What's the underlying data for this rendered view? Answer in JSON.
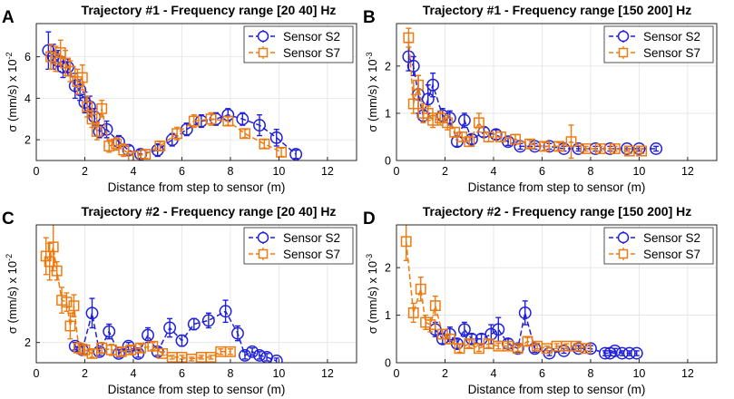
{
  "figure": {
    "colors": {
      "sensor_s2": "#1f1fdc",
      "sensor_s7": "#ee7b10",
      "grid": "#e3e3e3",
      "axis": "#262626"
    }
  },
  "chart_data": [
    {
      "panel_label": "A",
      "type": "scatter",
      "title": "Trajectory #1 - Frequency range [20 40] Hz",
      "xlabel": "Distance from step to sensor (m)",
      "ylabel": "σ (mm/s) x 10",
      "ylabel_exponent": "-2",
      "xlim": [
        0,
        13.2
      ],
      "ylim": [
        1.0,
        7.6
      ],
      "xticks": [
        0,
        2,
        4,
        6,
        8,
        10,
        12
      ],
      "xtick_labels": [
        "0",
        "2",
        "4",
        "6",
        "8",
        "10",
        "12"
      ],
      "yticks": [
        2,
        4,
        6
      ],
      "ytick_labels": [
        "2",
        "4",
        "6"
      ],
      "grid": true,
      "legend": "top-right",
      "series": [
        {
          "name": "Sensor S2",
          "marker": "circle",
          "x": [
            0.5,
            0.7,
            0.9,
            1.1,
            1.3,
            1.6,
            1.8,
            2.0,
            2.2,
            2.4,
            2.6,
            2.9,
            3.4,
            3.8,
            4.3,
            5.0,
            5.6,
            6.2,
            6.8,
            7.4,
            7.9,
            8.5,
            9.2,
            9.9,
            10.7
          ],
          "y": [
            6.3,
            6.0,
            5.8,
            5.5,
            5.5,
            4.6,
            4.4,
            3.8,
            3.6,
            3.1,
            2.4,
            2.5,
            1.9,
            1.5,
            1.3,
            1.5,
            2.0,
            2.5,
            2.9,
            3.0,
            3.2,
            3.0,
            2.7,
            2.1,
            1.3
          ],
          "err": [
            0.9,
            0.6,
            0.5,
            0.5,
            0.4,
            0.6,
            0.5,
            0.5,
            0.5,
            0.4,
            0.3,
            0.4,
            0.3,
            0.2,
            0.2,
            0.3,
            0.3,
            0.3,
            0.3,
            0.3,
            0.3,
            0.3,
            0.5,
            0.4,
            0.2
          ]
        },
        {
          "name": "Sensor S7",
          "marker": "square",
          "x": [
            0.6,
            0.8,
            1.0,
            1.2,
            1.4,
            1.7,
            1.9,
            2.1,
            2.3,
            2.5,
            2.7,
            3.0,
            3.3,
            3.6,
            4.0,
            4.5,
            5.1,
            5.8,
            6.5,
            7.2,
            7.9,
            8.6,
            9.4,
            10.1
          ],
          "y": [
            6.0,
            5.9,
            6.2,
            5.7,
            5.3,
            4.8,
            5.0,
            3.6,
            3.0,
            2.4,
            3.5,
            1.7,
            1.8,
            1.5,
            1.2,
            1.3,
            1.7,
            2.3,
            2.9,
            3.0,
            2.9,
            2.3,
            1.8,
            1.4
          ],
          "err": [
            0.6,
            0.6,
            0.6,
            0.6,
            0.5,
            0.6,
            0.6,
            0.5,
            0.4,
            0.4,
            0.4,
            0.3,
            0.3,
            0.3,
            0.2,
            0.2,
            0.2,
            0.3,
            0.3,
            0.3,
            0.2,
            0.2,
            0.2,
            0.2
          ]
        }
      ]
    },
    {
      "panel_label": "B",
      "type": "scatter",
      "title": "Trajectory #1 - Frequency range [150 200] Hz",
      "xlabel": "Distance from step to sensor (m)",
      "ylabel": "σ (mm/s) x 10",
      "ylabel_exponent": "-3",
      "xlim": [
        0,
        13.2
      ],
      "ylim": [
        0,
        2.9
      ],
      "xticks": [
        0,
        2,
        4,
        6,
        8,
        10,
        12
      ],
      "xtick_labels": [
        "0",
        "2",
        "4",
        "6",
        "8",
        "10",
        "12"
      ],
      "yticks": [
        0,
        1,
        2
      ],
      "ytick_labels": [
        "0",
        "1",
        "2"
      ],
      "grid": true,
      "legend": "top-right",
      "series": [
        {
          "name": "Sensor S2",
          "marker": "circle",
          "x": [
            0.5,
            0.7,
            0.9,
            1.1,
            1.3,
            1.5,
            1.9,
            2.2,
            2.5,
            2.8,
            3.1,
            3.6,
            4.1,
            4.6,
            5.1,
            5.7,
            6.3,
            6.9,
            7.5,
            8.2,
            8.8,
            9.5,
            10.0,
            10.7
          ],
          "y": [
            2.2,
            2.0,
            1.4,
            0.95,
            1.3,
            1.6,
            0.95,
            0.9,
            0.4,
            0.85,
            0.45,
            0.6,
            0.55,
            0.4,
            0.3,
            0.3,
            0.3,
            0.25,
            0.25,
            0.25,
            0.25,
            0.25,
            0.25,
            0.25
          ],
          "err": [
            0.3,
            0.2,
            0.4,
            0.15,
            0.3,
            0.25,
            0.15,
            0.15,
            0.1,
            0.15,
            0.1,
            0.1,
            0.1,
            0.08,
            0.06,
            0.06,
            0.06,
            0.05,
            0.05,
            0.05,
            0.05,
            0.05,
            0.05,
            0.05
          ]
        },
        {
          "name": "Sensor S7",
          "marker": "square",
          "x": [
            0.5,
            0.7,
            0.9,
            1.1,
            1.3,
            1.5,
            1.8,
            2.1,
            2.4,
            2.7,
            3.0,
            3.4,
            3.8,
            4.3,
            4.9,
            5.5,
            6.1,
            6.7,
            7.2,
            7.8,
            8.4,
            9.0,
            9.6,
            10.1
          ],
          "y": [
            2.6,
            1.2,
            1.6,
            1.0,
            1.0,
            0.85,
            0.9,
            0.8,
            0.6,
            0.5,
            0.4,
            0.8,
            0.5,
            0.5,
            0.45,
            0.35,
            0.3,
            0.3,
            0.4,
            0.25,
            0.25,
            0.25,
            0.2,
            0.2
          ],
          "err": [
            0.2,
            0.2,
            0.2,
            0.2,
            0.15,
            0.15,
            0.15,
            0.15,
            0.1,
            0.1,
            0.1,
            0.2,
            0.1,
            0.1,
            0.1,
            0.08,
            0.08,
            0.08,
            0.35,
            0.05,
            0.05,
            0.05,
            0.05,
            0.05
          ]
        }
      ]
    },
    {
      "panel_label": "C",
      "type": "scatter",
      "title": "Trajectory #2 - Frequency range [20 40] Hz",
      "xlabel": "Distance from step to sensor (m)",
      "ylabel": "σ (mm/s) x 10",
      "ylabel_exponent": "-2",
      "xlim": [
        0,
        13.2
      ],
      "ylim": [
        0.9,
        8.4
      ],
      "xticks": [
        0,
        2,
        4,
        6,
        8,
        10,
        12
      ],
      "xtick_labels": [
        "0",
        "2",
        "4",
        "6",
        "8",
        "10",
        "12"
      ],
      "yticks": [
        2
      ],
      "ytick_labels": [
        "2"
      ],
      "grid": true,
      "legend": "top-right",
      "series": [
        {
          "name": "Sensor S2",
          "marker": "circle",
          "x": [
            1.6,
            1.9,
            2.3,
            2.6,
            3.0,
            3.4,
            3.8,
            4.2,
            4.6,
            5.0,
            5.5,
            6.0,
            6.5,
            7.1,
            7.8,
            8.3,
            8.6,
            8.9,
            9.2,
            9.5,
            9.9
          ],
          "y": [
            1.8,
            1.6,
            3.6,
            1.5,
            2.6,
            1.4,
            1.8,
            1.4,
            2.4,
            1.5,
            2.8,
            2.1,
            3.0,
            3.2,
            3.7,
            2.5,
            1.3,
            1.5,
            1.3,
            1.2,
            1.0
          ],
          "err": [
            0.2,
            0.2,
            0.8,
            0.2,
            0.4,
            0.2,
            0.2,
            0.2,
            0.4,
            0.2,
            0.5,
            0.3,
            0.3,
            0.4,
            0.6,
            0.4,
            0.2,
            0.2,
            0.2,
            0.2,
            0.15
          ]
        },
        {
          "name": "Sensor S7",
          "marker": "square",
          "x": [
            0.4,
            0.55,
            0.7,
            0.85,
            1.05,
            1.25,
            1.4,
            1.55,
            1.75,
            2.0,
            2.3,
            2.7,
            3.1,
            3.5,
            3.9,
            4.3,
            4.8,
            5.2,
            5.6,
            6.0,
            6.4,
            6.8,
            7.2,
            7.6,
            8.0
          ],
          "y": [
            6.7,
            6.4,
            7.2,
            5.9,
            4.3,
            4.2,
            2.9,
            4.0,
            1.7,
            1.6,
            1.4,
            1.7,
            1.6,
            1.5,
            1.6,
            1.7,
            1.8,
            1.4,
            1.2,
            1.2,
            1.1,
            1.2,
            1.2,
            1.5,
            1.5
          ],
          "err": [
            1.0,
            1.0,
            1.3,
            0.5,
            0.7,
            0.5,
            0.7,
            0.6,
            0.3,
            0.3,
            0.2,
            0.3,
            0.3,
            0.2,
            0.2,
            0.2,
            0.2,
            0.1,
            0.1,
            0.1,
            0.1,
            0.1,
            0.1,
            0.15,
            0.15
          ]
        }
      ]
    },
    {
      "panel_label": "D",
      "type": "scatter",
      "title": "Trajectory #2 - Frequency range [150 200] Hz",
      "xlabel": "Distance from step to sensor (m)",
      "ylabel": "σ (mm/s) x 10",
      "ylabel_exponent": "-3",
      "xlim": [
        0,
        13.2
      ],
      "ylim": [
        0,
        2.9
      ],
      "xticks": [
        0,
        2,
        4,
        6,
        8,
        10,
        12
      ],
      "xtick_labels": [
        "0",
        "2",
        "4",
        "6",
        "8",
        "10",
        "12"
      ],
      "yticks": [
        0,
        1,
        2
      ],
      "ytick_labels": [
        "0",
        "1",
        "2"
      ],
      "grid": true,
      "legend": "top-right",
      "series": [
        {
          "name": "Sensor S2",
          "marker": "circle",
          "x": [
            1.6,
            1.9,
            2.2,
            2.5,
            2.8,
            3.1,
            3.5,
            3.9,
            4.2,
            4.6,
            5.0,
            5.3,
            5.7,
            6.3,
            6.9,
            7.5,
            8.0,
            8.6,
            8.8,
            9.0,
            9.3,
            9.6,
            9.9
          ],
          "y": [
            0.7,
            0.5,
            0.6,
            0.4,
            0.7,
            0.5,
            0.5,
            0.6,
            0.7,
            0.4,
            0.3,
            1.05,
            0.3,
            0.2,
            0.25,
            0.3,
            0.3,
            0.2,
            0.2,
            0.25,
            0.2,
            0.2,
            0.2
          ],
          "err": [
            0.15,
            0.1,
            0.15,
            0.1,
            0.15,
            0.1,
            0.1,
            0.2,
            0.25,
            0.1,
            0.08,
            0.25,
            0.08,
            0.05,
            0.05,
            0.06,
            0.06,
            0.05,
            0.05,
            0.05,
            0.05,
            0.05,
            0.05
          ]
        },
        {
          "name": "Sensor S7",
          "marker": "square",
          "x": [
            0.4,
            0.7,
            1.0,
            1.2,
            1.4,
            1.6,
            1.9,
            2.2,
            2.6,
            3.0,
            3.4,
            3.8,
            4.2,
            4.6,
            5.0,
            5.4,
            5.8,
            6.2,
            6.6,
            7.0,
            7.4,
            7.8
          ],
          "y": [
            2.55,
            1.05,
            1.55,
            0.85,
            0.8,
            1.2,
            0.6,
            0.5,
            0.3,
            0.4,
            0.3,
            0.4,
            0.35,
            0.35,
            0.3,
            0.45,
            0.35,
            0.3,
            0.35,
            0.35,
            0.35,
            0.3
          ],
          "err": [
            0.4,
            0.2,
            0.25,
            0.15,
            0.15,
            0.2,
            0.1,
            0.1,
            0.08,
            0.08,
            0.06,
            0.08,
            0.06,
            0.06,
            0.06,
            0.08,
            0.06,
            0.05,
            0.05,
            0.05,
            0.05,
            0.05
          ]
        }
      ]
    }
  ]
}
